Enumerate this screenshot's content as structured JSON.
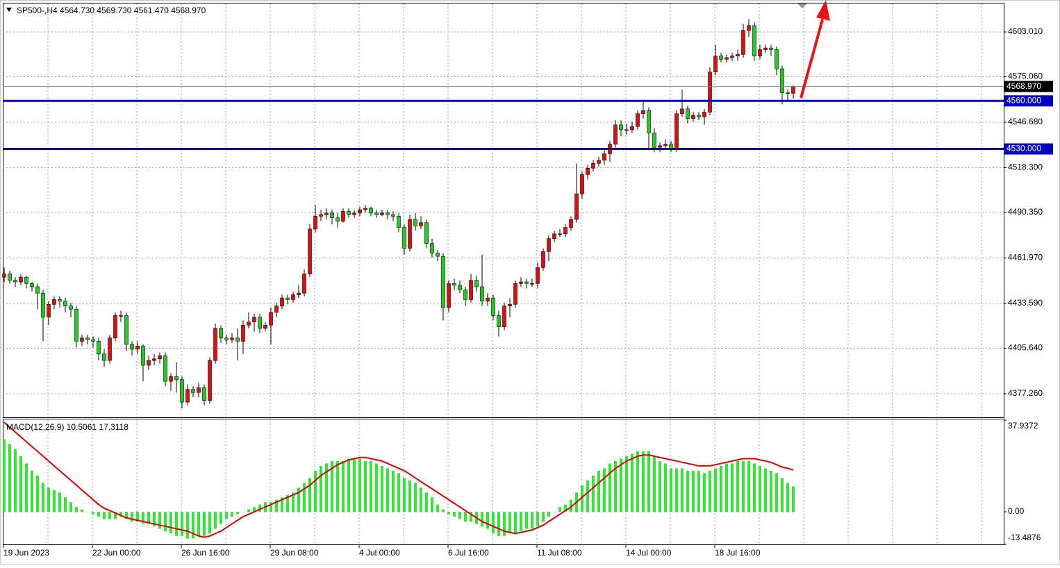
{
  "chart_data": [
    {
      "type": "candlestick",
      "title": "SP500-,H4  4564.730 4569.730 4561.470 4568.970",
      "up_color": "#e01010",
      "down_color": "#22cc22",
      "wick_color": "#000000",
      "level_color": "#0000c0",
      "grid": true,
      "ylim": [
        4362.5,
        4620.8
      ],
      "yticks": [
        {
          "value": 4603.01,
          "label": "4603.010"
        },
        {
          "value": 4575.06,
          "label": "4575.060"
        },
        {
          "value": 4546.68,
          "label": "4546.680"
        },
        {
          "value": 4518.3,
          "label": "4518.300"
        },
        {
          "value": 4490.35,
          "label": "4490.350"
        },
        {
          "value": 4461.97,
          "label": "4461.970"
        },
        {
          "value": 4433.59,
          "label": "4433.590"
        },
        {
          "value": 4405.64,
          "label": "4405.640"
        },
        {
          "value": 4377.26,
          "label": "4377.260"
        }
      ],
      "levels": [
        {
          "value": 4560,
          "label": "4560.000"
        },
        {
          "value": 4530,
          "label": "4530.000"
        }
      ],
      "last": {
        "value": 4568.97,
        "label": "4568.970"
      },
      "xlabels": [
        "19 Jun 2023",
        "22 Jun 00:00",
        "26 Jun 16:00",
        "29 Jun 08:00",
        "4 Jul 00:00",
        "6 Jul 16:00",
        "11 Jul 08:00",
        "14 Jul 00:00",
        "18 Jul 16:00"
      ],
      "ohlc": [
        [
          4450,
          4456,
          4447,
          4452
        ],
        [
          4452,
          4454,
          4446,
          4448
        ],
        [
          4448,
          4450,
          4444,
          4447
        ],
        [
          4447,
          4452,
          4445,
          4450
        ],
        [
          4450,
          4451,
          4443,
          4446
        ],
        [
          4446,
          4447,
          4441,
          4444
        ],
        [
          4444,
          4446,
          4430,
          4440
        ],
        [
          4440,
          4442,
          4410,
          4425
        ],
        [
          4425,
          4435,
          4420,
          4433
        ],
        [
          4433,
          4438,
          4430,
          4436
        ],
        [
          4436,
          4438,
          4431,
          4435
        ],
        [
          4435,
          4437,
          4428,
          4432
        ],
        [
          4432,
          4434,
          4425,
          4430
        ],
        [
          4430,
          4432,
          4406,
          4410
        ],
        [
          4410,
          4414,
          4407,
          4412
        ],
        [
          4412,
          4414,
          4408,
          4411
        ],
        [
          4411,
          4413,
          4406,
          4410
        ],
        [
          4410,
          4412,
          4398,
          4402
        ],
        [
          4402,
          4405,
          4394,
          4398
        ],
        [
          4398,
          4414,
          4396,
          4412
        ],
        [
          4412,
          4428,
          4410,
          4426
        ],
        [
          4426,
          4429,
          4422,
          4426
        ],
        [
          4426,
          4428,
          4404,
          4408
        ],
        [
          4408,
          4410,
          4401,
          4405
        ],
        [
          4405,
          4410,
          4402,
          4407
        ],
        [
          4407,
          4408,
          4385,
          4395
        ],
        [
          4395,
          4401,
          4392,
          4398
        ],
        [
          4398,
          4402,
          4395,
          4399
        ],
        [
          4399,
          4403,
          4396,
          4401
        ],
        [
          4401,
          4403,
          4382,
          4385
        ],
        [
          4385,
          4390,
          4379,
          4388
        ],
        [
          4388,
          4397,
          4378,
          4386
        ],
        [
          4386,
          4388,
          4368,
          4372
        ],
        [
          4372,
          4383,
          4370,
          4380
        ],
        [
          4380,
          4382,
          4375,
          4378
        ],
        [
          4378,
          4384,
          4375,
          4381
        ],
        [
          4381,
          4383,
          4370,
          4373
        ],
        [
          4373,
          4400,
          4371,
          4398
        ],
        [
          4398,
          4421,
          4396,
          4418
        ],
        [
          4418,
          4420,
          4409,
          4412
        ],
        [
          4412,
          4414,
          4408,
          4411
        ],
        [
          4411,
          4415,
          4409,
          4412
        ],
        [
          4412,
          4418,
          4398,
          4410
        ],
        [
          4410,
          4423,
          4402,
          4420
        ],
        [
          4420,
          4428,
          4418,
          4422
        ],
        [
          4422,
          4427,
          4416,
          4425
        ],
        [
          4425,
          4427,
          4415,
          4418
        ],
        [
          4418,
          4422,
          4416,
          4420
        ],
        [
          4420,
          4431,
          4408,
          4428
        ],
        [
          4428,
          4434,
          4425,
          4432
        ],
        [
          4432,
          4439,
          4430,
          4437
        ],
        [
          4437,
          4439,
          4433,
          4436
        ],
        [
          4436,
          4441,
          4434,
          4439
        ],
        [
          4439,
          4445,
          4437,
          4440
        ],
        [
          4440,
          4455,
          4438,
          4452
        ],
        [
          4452,
          4483,
          4450,
          4480
        ],
        [
          4480,
          4495,
          4478,
          4488
        ],
        [
          4488,
          4492,
          4485,
          4489
        ],
        [
          4489,
          4493,
          4486,
          4490
        ],
        [
          4490,
          4492,
          4483,
          4487
        ],
        [
          4487,
          4490,
          4481,
          4485
        ],
        [
          4485,
          4493,
          4484,
          4491
        ],
        [
          4491,
          4493,
          4487,
          4489
        ],
        [
          4489,
          4492,
          4487,
          4490
        ],
        [
          4490,
          4494,
          4488,
          4492
        ],
        [
          4492,
          4495,
          4490,
          4493
        ],
        [
          4493,
          4494,
          4488,
          4490
        ],
        [
          4490,
          4492,
          4487,
          4489
        ],
        [
          4489,
          4492,
          4488,
          4490
        ],
        [
          4490,
          4492,
          4486,
          4489
        ],
        [
          4489,
          4491,
          4485,
          4488
        ],
        [
          4488,
          4490,
          4478,
          4481
        ],
        [
          4481,
          4483,
          4464,
          4468
        ],
        [
          4468,
          4489,
          4466,
          4486
        ],
        [
          4486,
          4490,
          4479,
          4482
        ],
        [
          4482,
          4488,
          4480,
          4484
        ],
        [
          4484,
          4486,
          4468,
          4471
        ],
        [
          4471,
          4474,
          4462,
          4465
        ],
        [
          4465,
          4467,
          4460,
          4463
        ],
        [
          4463,
          4465,
          4423,
          4431
        ],
        [
          4431,
          4448,
          4428,
          4446
        ],
        [
          4446,
          4449,
          4442,
          4445
        ],
        [
          4445,
          4448,
          4440,
          4442
        ],
        [
          4442,
          4444,
          4432,
          4436
        ],
        [
          4436,
          4452,
          4434,
          4448
        ],
        [
          4448,
          4451,
          4441,
          4444
        ],
        [
          4444,
          4464,
          4432,
          4435
        ],
        [
          4435,
          4440,
          4432,
          4437
        ],
        [
          4437,
          4439,
          4423,
          4426
        ],
        [
          4426,
          4429,
          4413,
          4419
        ],
        [
          4419,
          4434,
          4417,
          4432
        ],
        [
          4432,
          4437,
          4425,
          4433
        ],
        [
          4433,
          4448,
          4431,
          4446
        ],
        [
          4446,
          4450,
          4444,
          4447
        ],
        [
          4447,
          4449,
          4443,
          4446
        ],
        [
          4446,
          4449,
          4444,
          4446
        ],
        [
          4446,
          4459,
          4443,
          4456
        ],
        [
          4456,
          4468,
          4454,
          4466
        ],
        [
          4466,
          4476,
          4460,
          4474
        ],
        [
          4474,
          4479,
          4472,
          4477
        ],
        [
          4477,
          4480,
          4475,
          4477
        ],
        [
          4477,
          4483,
          4475,
          4481
        ],
        [
          4481,
          4488,
          4479,
          4486
        ],
        [
          4486,
          4521,
          4484,
          4502
        ],
        [
          4502,
          4516,
          4499,
          4514
        ],
        [
          4514,
          4520,
          4511,
          4518
        ],
        [
          4518,
          4523,
          4516,
          4521
        ],
        [
          4521,
          4525,
          4519,
          4523
        ],
        [
          4523,
          4530,
          4520,
          4527
        ],
        [
          4527,
          4535,
          4522,
          4533
        ],
        [
          4533,
          4548,
          4531,
          4545
        ],
        [
          4545,
          4548,
          4538,
          4542
        ],
        [
          4542,
          4546,
          4539,
          4542
        ],
        [
          4542,
          4547,
          4540,
          4544
        ],
        [
          4544,
          4554,
          4542,
          4552
        ],
        [
          4552,
          4560,
          4549,
          4554
        ],
        [
          4554,
          4556,
          4530,
          4540
        ],
        [
          4540,
          4543,
          4528,
          4531
        ],
        [
          4531,
          4534,
          4528,
          4532
        ],
        [
          4532,
          4536,
          4530,
          4533
        ],
        [
          4533,
          4535,
          4528,
          4530
        ],
        [
          4530,
          4554,
          4528,
          4552
        ],
        [
          4552,
          4567,
          4550,
          4555
        ],
        [
          4555,
          4557,
          4546,
          4549
        ],
        [
          4549,
          4553,
          4547,
          4551
        ],
        [
          4551,
          4553,
          4548,
          4550
        ],
        [
          4550,
          4555,
          4545,
          4553
        ],
        [
          4553,
          4581,
          4551,
          4578
        ],
        [
          4578,
          4595,
          4576,
          4588
        ],
        [
          4588,
          4590,
          4584,
          4586
        ],
        [
          4586,
          4589,
          4584,
          4587
        ],
        [
          4587,
          4590,
          4585,
          4588
        ],
        [
          4588,
          4592,
          4585,
          4589
        ],
        [
          4589,
          4608,
          4587,
          4604
        ],
        [
          4604,
          4611,
          4600,
          4607
        ],
        [
          4607,
          4609,
          4585,
          4588
        ],
        [
          4588,
          4595,
          4586,
          4592
        ],
        [
          4592,
          4595,
          4590,
          4593
        ],
        [
          4593,
          4595,
          4588,
          4592
        ],
        [
          4592,
          4594,
          4576,
          4580
        ],
        [
          4580,
          4582,
          4558,
          4565
        ],
        [
          4565,
          4567,
          4560,
          4564.73
        ],
        [
          4564.73,
          4569.73,
          4561.47,
          4568.97
        ]
      ]
    },
    {
      "type": "macd",
      "title": "MACD(12,26,9) 10.5061 17.3118",
      "histogram_color": "#33e633",
      "signal_color": "#e00000",
      "ylim": [
        -13.4876,
        37.9372
      ],
      "yticks": [
        37.9372,
        {
          "value": 0,
          "label": "0.00"
        },
        -13.4876
      ],
      "histogram": [
        30,
        28,
        26,
        23,
        20,
        17,
        15,
        12,
        10,
        9,
        8,
        6,
        4,
        2,
        1,
        0,
        -1,
        -2,
        -3,
        -3,
        -3,
        -2,
        -3,
        -4,
        -4,
        -5,
        -5,
        -6,
        -7,
        -8,
        -9,
        -10,
        -10,
        -11,
        -11,
        -10,
        -10,
        -9,
        -7,
        -5,
        -3,
        -2,
        -1,
        0,
        1,
        2,
        3,
        4,
        4,
        5,
        6,
        7,
        8,
        10,
        12,
        14,
        17,
        19,
        20,
        21,
        21,
        21,
        22,
        22,
        22,
        21,
        21,
        20,
        19,
        18,
        17,
        16,
        14,
        13,
        12,
        10,
        8,
        6,
        3,
        1,
        -1,
        -2,
        -3,
        -4,
        -4,
        -5,
        -6,
        -7,
        -9,
        -10,
        -10,
        -9,
        -9,
        -8,
        -7,
        -7,
        -6,
        -4,
        -2,
        0,
        2,
        3,
        5,
        8,
        11,
        13,
        15,
        17,
        18,
        20,
        21,
        22,
        23,
        24,
        25,
        25,
        25,
        23,
        21,
        20,
        18,
        18,
        18,
        17,
        17,
        17,
        16,
        17,
        18,
        19,
        20,
        20,
        21,
        21,
        21,
        20,
        19,
        18,
        17,
        16,
        14,
        12,
        10.5061
      ],
      "signal": [
        37,
        35,
        33,
        31,
        29,
        27,
        25,
        23,
        21,
        19,
        17,
        15,
        13,
        11,
        9,
        7,
        5,
        3,
        1.5,
        0.5,
        -0.5,
        -1.5,
        -2.5,
        -3,
        -3.5,
        -4,
        -4.5,
        -5,
        -5.5,
        -6,
        -6.5,
        -7,
        -7.5,
        -8,
        -9,
        -10,
        -10.5,
        -10,
        -9,
        -8,
        -6.5,
        -5,
        -3.5,
        -2,
        -1,
        0,
        1,
        2,
        3,
        4,
        5,
        6,
        7,
        8,
        9.5,
        11,
        13,
        15,
        16.5,
        18,
        19.5,
        20.5,
        21.5,
        22,
        22.5,
        22.5,
        22,
        21.5,
        21,
        20,
        19,
        18,
        17,
        15.5,
        14,
        12.5,
        11,
        9.5,
        8,
        6.5,
        5,
        3.5,
        2,
        0.5,
        -1,
        -2.5,
        -4,
        -5,
        -6,
        -7,
        -8,
        -8.5,
        -9,
        -8.5,
        -8,
        -7.5,
        -6.5,
        -5.5,
        -4,
        -2.5,
        -1,
        0.5,
        2,
        4,
        6,
        8,
        10,
        12,
        14,
        16,
        18,
        19.5,
        21,
        22,
        23,
        23.5,
        23.5,
        23,
        22.5,
        22,
        21.5,
        21,
        20.5,
        20,
        19.5,
        19,
        19,
        19,
        19.5,
        20,
        20.5,
        21,
        21.5,
        22,
        22,
        22,
        21.5,
        21,
        20.5,
        19.5,
        18.5,
        18,
        17.3118
      ]
    }
  ]
}
